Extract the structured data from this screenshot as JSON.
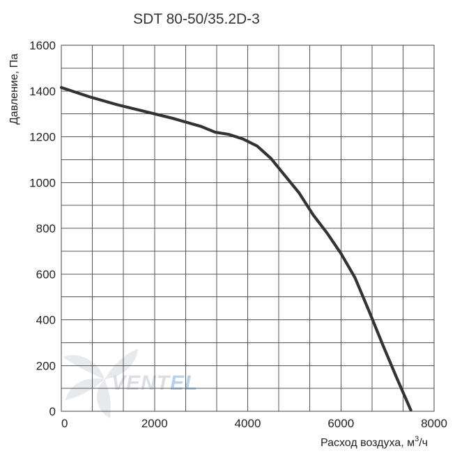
{
  "chart_data": {
    "type": "line",
    "title": "SDT 80-50/35.2D-3",
    "xlabel": "Расход воздуха, м",
    "xlabel_sup": "3",
    "xlabel_tail": "/ч",
    "ylabel": "Давление, Па",
    "xlim": [
      0,
      8000
    ],
    "ylim": [
      0,
      1600
    ],
    "xticks": [
      0,
      2000,
      4000,
      6000,
      8000
    ],
    "xtick_labels": [
      "0",
      "2000",
      "4000",
      "6000",
      "8000"
    ],
    "yticks": [
      0,
      200,
      400,
      600,
      800,
      1000,
      1200,
      1400,
      1600
    ],
    "ytick_labels": [
      "0",
      "200",
      "400",
      "600",
      "800",
      "1000",
      "1200",
      "1400",
      "1600"
    ],
    "grid": true,
    "grid_x_step": 666.67,
    "grid_y_step": 100,
    "series": [
      {
        "x": [
          0,
          600,
          1200,
          1800,
          2400,
          3000,
          3300,
          3600,
          3900,
          4200,
          4500,
          4800,
          5100,
          5400,
          5700,
          6000,
          6300,
          6600,
          6900,
          7200,
          7500
        ],
        "y": [
          1415,
          1375,
          1340,
          1310,
          1280,
          1245,
          1220,
          1210,
          1190,
          1160,
          1105,
          1030,
          955,
          860,
          780,
          690,
          585,
          440,
          290,
          145,
          5
        ]
      }
    ],
    "colors": {
      "curve": "#333333",
      "grid": "#555555",
      "watermark": "#d9dde4",
      "watermark_accent": "#b9d2ea"
    }
  },
  "watermark": {
    "brand_main": "VENT",
    "brand_accent": "EL",
    "icon": "fan-logo-icon"
  }
}
